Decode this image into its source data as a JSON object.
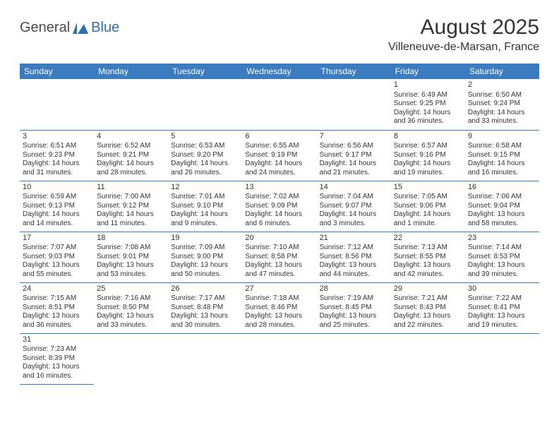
{
  "logo": {
    "part1": "General",
    "part2": "Blue"
  },
  "title": "August 2025",
  "location": "Villeneuve-de-Marsan, France",
  "header_bg": "#3b7bbf",
  "header_fg": "#ffffff",
  "border_color": "#3b7bbf",
  "text_color": "#333333",
  "day_headers": [
    "Sunday",
    "Monday",
    "Tuesday",
    "Wednesday",
    "Thursday",
    "Friday",
    "Saturday"
  ],
  "weeks": [
    [
      null,
      null,
      null,
      null,
      null,
      {
        "n": "1",
        "sr": "6:49 AM",
        "ss": "9:25 PM",
        "dl": "14 hours and 36 minutes."
      },
      {
        "n": "2",
        "sr": "6:50 AM",
        "ss": "9:24 PM",
        "dl": "14 hours and 33 minutes."
      }
    ],
    [
      {
        "n": "3",
        "sr": "6:51 AM",
        "ss": "9:23 PM",
        "dl": "14 hours and 31 minutes."
      },
      {
        "n": "4",
        "sr": "6:52 AM",
        "ss": "9:21 PM",
        "dl": "14 hours and 28 minutes."
      },
      {
        "n": "5",
        "sr": "6:53 AM",
        "ss": "9:20 PM",
        "dl": "14 hours and 26 minutes."
      },
      {
        "n": "6",
        "sr": "6:55 AM",
        "ss": "9:19 PM",
        "dl": "14 hours and 24 minutes."
      },
      {
        "n": "7",
        "sr": "6:56 AM",
        "ss": "9:17 PM",
        "dl": "14 hours and 21 minutes."
      },
      {
        "n": "8",
        "sr": "6:57 AM",
        "ss": "9:16 PM",
        "dl": "14 hours and 19 minutes."
      },
      {
        "n": "9",
        "sr": "6:58 AM",
        "ss": "9:15 PM",
        "dl": "14 hours and 16 minutes."
      }
    ],
    [
      {
        "n": "10",
        "sr": "6:59 AM",
        "ss": "9:13 PM",
        "dl": "14 hours and 14 minutes."
      },
      {
        "n": "11",
        "sr": "7:00 AM",
        "ss": "9:12 PM",
        "dl": "14 hours and 11 minutes."
      },
      {
        "n": "12",
        "sr": "7:01 AM",
        "ss": "9:10 PM",
        "dl": "14 hours and 9 minutes."
      },
      {
        "n": "13",
        "sr": "7:02 AM",
        "ss": "9:09 PM",
        "dl": "14 hours and 6 minutes."
      },
      {
        "n": "14",
        "sr": "7:04 AM",
        "ss": "9:07 PM",
        "dl": "14 hours and 3 minutes."
      },
      {
        "n": "15",
        "sr": "7:05 AM",
        "ss": "9:06 PM",
        "dl": "14 hours and 1 minute."
      },
      {
        "n": "16",
        "sr": "7:06 AM",
        "ss": "9:04 PM",
        "dl": "13 hours and 58 minutes."
      }
    ],
    [
      {
        "n": "17",
        "sr": "7:07 AM",
        "ss": "9:03 PM",
        "dl": "13 hours and 55 minutes."
      },
      {
        "n": "18",
        "sr": "7:08 AM",
        "ss": "9:01 PM",
        "dl": "13 hours and 53 minutes."
      },
      {
        "n": "19",
        "sr": "7:09 AM",
        "ss": "9:00 PM",
        "dl": "13 hours and 50 minutes."
      },
      {
        "n": "20",
        "sr": "7:10 AM",
        "ss": "8:58 PM",
        "dl": "13 hours and 47 minutes."
      },
      {
        "n": "21",
        "sr": "7:12 AM",
        "ss": "8:56 PM",
        "dl": "13 hours and 44 minutes."
      },
      {
        "n": "22",
        "sr": "7:13 AM",
        "ss": "8:55 PM",
        "dl": "13 hours and 42 minutes."
      },
      {
        "n": "23",
        "sr": "7:14 AM",
        "ss": "8:53 PM",
        "dl": "13 hours and 39 minutes."
      }
    ],
    [
      {
        "n": "24",
        "sr": "7:15 AM",
        "ss": "8:51 PM",
        "dl": "13 hours and 36 minutes."
      },
      {
        "n": "25",
        "sr": "7:16 AM",
        "ss": "8:50 PM",
        "dl": "13 hours and 33 minutes."
      },
      {
        "n": "26",
        "sr": "7:17 AM",
        "ss": "8:48 PM",
        "dl": "13 hours and 30 minutes."
      },
      {
        "n": "27",
        "sr": "7:18 AM",
        "ss": "8:46 PM",
        "dl": "13 hours and 28 minutes."
      },
      {
        "n": "28",
        "sr": "7:19 AM",
        "ss": "8:45 PM",
        "dl": "13 hours and 25 minutes."
      },
      {
        "n": "29",
        "sr": "7:21 AM",
        "ss": "8:43 PM",
        "dl": "13 hours and 22 minutes."
      },
      {
        "n": "30",
        "sr": "7:22 AM",
        "ss": "8:41 PM",
        "dl": "13 hours and 19 minutes."
      }
    ],
    [
      {
        "n": "31",
        "sr": "7:23 AM",
        "ss": "8:39 PM",
        "dl": "13 hours and 16 minutes."
      },
      null,
      null,
      null,
      null,
      null,
      null
    ]
  ],
  "labels": {
    "sunrise": "Sunrise:",
    "sunset": "Sunset:",
    "daylight": "Daylight:"
  }
}
